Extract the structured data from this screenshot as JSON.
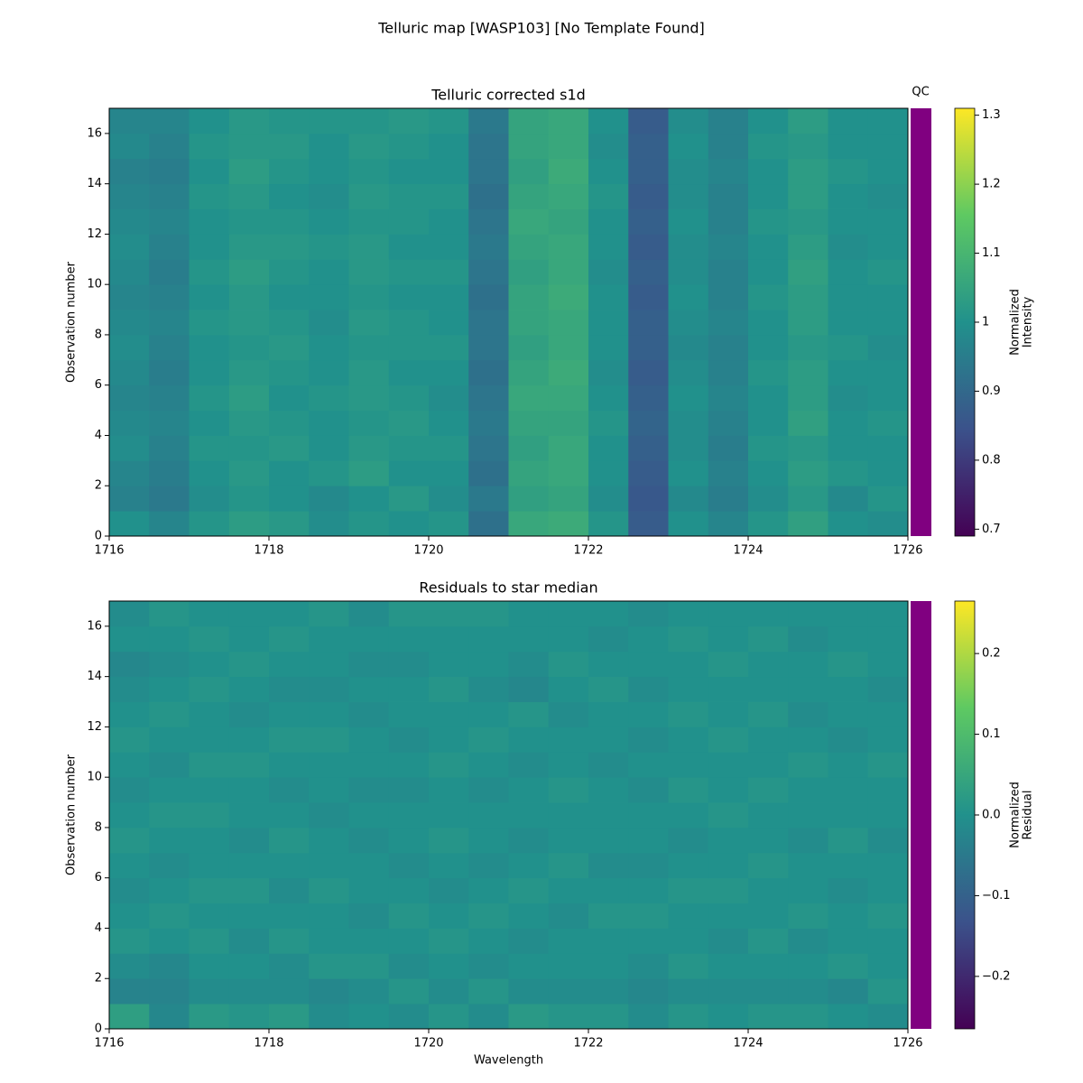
{
  "title": "Telluric map [WASP103] [No Template Found]",
  "chart_data": [
    {
      "type": "heatmap",
      "title": "Telluric corrected s1d",
      "ylabel": "Observation number",
      "colormap": "viridis",
      "qc_label": "QC",
      "qc_color": "#800080",
      "colorbar_label": [
        "Normalized",
        "Intensity"
      ],
      "clim": [
        0.69,
        1.31
      ],
      "cticks": [
        0.7,
        0.8,
        0.9,
        1.0,
        1.1,
        1.2,
        1.3
      ],
      "xlim": [
        1716,
        1726
      ],
      "ylim": [
        0,
        17
      ],
      "xticks": [
        1716,
        1718,
        1720,
        1722,
        1724,
        1726
      ],
      "yticks": [
        0,
        2,
        4,
        6,
        8,
        10,
        12,
        14,
        16
      ],
      "x_edges": [
        1716,
        1716.5,
        1717,
        1717.5,
        1718,
        1718.5,
        1719,
        1719.5,
        1720,
        1720.5,
        1721,
        1721.5,
        1722,
        1722.5,
        1723,
        1723.5,
        1724,
        1724.5,
        1725,
        1725.5,
        1726
      ],
      "y_edges": [
        0,
        1,
        2,
        3,
        4,
        5,
        6,
        7,
        8,
        9,
        10,
        11,
        12,
        13,
        14,
        15,
        16,
        17
      ],
      "values": [
        [
          1.0,
          0.97,
          1.01,
          1.03,
          1.02,
          0.99,
          1.01,
          1.0,
          1.01,
          0.92,
          1.06,
          1.07,
          1.01,
          0.87,
          1.0,
          0.97,
          1.01,
          1.04,
          1.0,
          0.99
        ],
        [
          0.96,
          0.94,
          0.99,
          1.01,
          1.0,
          0.98,
          1.0,
          1.02,
          0.99,
          0.94,
          1.04,
          1.05,
          0.99,
          0.86,
          0.98,
          0.95,
          0.99,
          1.02,
          0.98,
          1.01
        ],
        [
          0.97,
          0.95,
          1.0,
          1.02,
          1.0,
          1.01,
          1.03,
          1.0,
          1.0,
          0.92,
          1.05,
          1.06,
          1.0,
          0.87,
          1.0,
          0.96,
          1.0,
          1.03,
          1.01,
          1.0
        ],
        [
          0.99,
          0.96,
          1.01,
          1.01,
          1.02,
          1.0,
          1.02,
          1.01,
          1.01,
          0.93,
          1.04,
          1.06,
          1.0,
          0.88,
          0.99,
          0.95,
          1.01,
          1.02,
          1.0,
          1.0
        ],
        [
          0.98,
          0.97,
          1.0,
          1.02,
          1.01,
          1.0,
          1.01,
          1.02,
          1.0,
          0.94,
          1.05,
          1.05,
          1.01,
          0.89,
          0.99,
          0.96,
          1.0,
          1.04,
          1.0,
          1.01
        ],
        [
          0.97,
          0.96,
          1.01,
          1.03,
          1.0,
          1.01,
          1.02,
          1.01,
          0.99,
          0.93,
          1.06,
          1.06,
          1.0,
          0.88,
          1.0,
          0.97,
          1.0,
          1.03,
          0.99,
          1.0
        ],
        [
          0.98,
          0.95,
          1.0,
          1.02,
          1.01,
          1.0,
          1.02,
          1.0,
          1.0,
          0.92,
          1.05,
          1.07,
          0.99,
          0.87,
          0.99,
          0.96,
          1.01,
          1.03,
          1.0,
          1.0
        ],
        [
          0.99,
          0.96,
          1.0,
          1.01,
          1.02,
          1.0,
          1.01,
          1.01,
          1.01,
          0.93,
          1.04,
          1.06,
          1.0,
          0.88,
          0.98,
          0.96,
          1.0,
          1.02,
          1.01,
          0.99
        ],
        [
          0.98,
          0.97,
          1.01,
          1.02,
          1.01,
          0.99,
          1.02,
          1.01,
          1.0,
          0.93,
          1.05,
          1.06,
          1.0,
          0.88,
          0.99,
          0.97,
          1.0,
          1.03,
          1.0,
          1.0
        ],
        [
          0.97,
          0.96,
          1.0,
          1.02,
          1.0,
          1.0,
          1.01,
          1.0,
          1.0,
          0.92,
          1.05,
          1.07,
          1.0,
          0.87,
          1.0,
          0.96,
          1.01,
          1.03,
          1.0,
          1.0
        ],
        [
          0.98,
          0.95,
          1.01,
          1.03,
          1.01,
          1.0,
          1.02,
          1.01,
          1.01,
          0.93,
          1.04,
          1.06,
          0.99,
          0.88,
          0.99,
          0.96,
          1.0,
          1.04,
          1.0,
          1.01
        ],
        [
          0.99,
          0.96,
          1.0,
          1.02,
          1.02,
          1.01,
          1.02,
          1.0,
          1.0,
          0.94,
          1.05,
          1.06,
          1.0,
          0.87,
          0.99,
          0.97,
          1.0,
          1.03,
          0.99,
          1.0
        ],
        [
          0.98,
          0.97,
          1.0,
          1.01,
          1.01,
          1.0,
          1.01,
          1.01,
          1.0,
          0.93,
          1.06,
          1.05,
          1.0,
          0.88,
          1.0,
          0.96,
          1.01,
          1.02,
          1.0,
          1.0
        ],
        [
          0.97,
          0.96,
          1.01,
          1.02,
          1.0,
          0.99,
          1.02,
          1.01,
          1.01,
          0.92,
          1.05,
          1.06,
          1.01,
          0.87,
          0.99,
          0.96,
          1.0,
          1.03,
          1.0,
          0.99
        ],
        [
          0.96,
          0.95,
          1.0,
          1.03,
          1.01,
          1.0,
          1.01,
          1.0,
          1.0,
          0.93,
          1.04,
          1.07,
          1.0,
          0.88,
          0.99,
          0.97,
          1.0,
          1.03,
          1.01,
          1.0
        ],
        [
          0.98,
          0.96,
          1.01,
          1.02,
          1.02,
          1.0,
          1.02,
          1.01,
          1.0,
          0.93,
          1.05,
          1.06,
          0.99,
          0.88,
          1.0,
          0.96,
          1.01,
          1.02,
          1.0,
          1.0
        ],
        [
          0.97,
          0.97,
          1.0,
          1.02,
          1.01,
          1.01,
          1.01,
          1.02,
          1.01,
          0.94,
          1.05,
          1.06,
          1.0,
          0.87,
          0.99,
          0.96,
          1.0,
          1.03,
          1.0,
          1.0
        ]
      ]
    },
    {
      "type": "heatmap",
      "title": "Residuals to star median",
      "xlabel": "Wavelength",
      "ylabel": "Observation number",
      "colormap": "viridis",
      "qc_color": "#800080",
      "colorbar_label": [
        "Normalized",
        "Residual"
      ],
      "clim": [
        -0.265,
        0.265
      ],
      "cticks": [
        {
          "value": -0.2,
          "label": "−0.2"
        },
        {
          "value": -0.1,
          "label": "−0.1"
        },
        {
          "value": 0,
          "label": "0.0"
        },
        0.1,
        0.2
      ],
      "xlim": [
        1716,
        1726
      ],
      "ylim": [
        0,
        17
      ],
      "xticks": [
        1716,
        1718,
        1720,
        1722,
        1724,
        1726
      ],
      "yticks": [
        0,
        2,
        4,
        6,
        8,
        10,
        12,
        14,
        16
      ],
      "x_edges": [
        1716,
        1716.5,
        1717,
        1717.5,
        1718,
        1718.5,
        1719,
        1719.5,
        1720,
        1720.5,
        1721,
        1721.5,
        1722,
        1722.5,
        1723,
        1723.5,
        1724,
        1724.5,
        1725,
        1725.5,
        1726
      ],
      "y_edges": [
        0,
        1,
        2,
        3,
        4,
        5,
        6,
        7,
        8,
        9,
        10,
        11,
        12,
        13,
        14,
        15,
        16,
        17
      ],
      "values": [
        [
          0.03,
          -0.02,
          0.02,
          0.01,
          0.02,
          -0.01,
          0.0,
          -0.01,
          0.01,
          -0.01,
          0.02,
          0.01,
          0.01,
          -0.01,
          0.01,
          0.0,
          0.01,
          0.01,
          0.0,
          -0.01
        ],
        [
          -0.03,
          -0.03,
          -0.01,
          -0.01,
          -0.01,
          -0.02,
          -0.01,
          0.01,
          -0.01,
          0.01,
          -0.01,
          -0.01,
          -0.01,
          -0.02,
          -0.01,
          -0.01,
          -0.01,
          -0.01,
          -0.02,
          0.01
        ],
        [
          -0.01,
          -0.02,
          0.0,
          0.0,
          -0.01,
          0.01,
          0.01,
          -0.01,
          0.0,
          -0.01,
          0.0,
          0.0,
          0.0,
          -0.01,
          0.01,
          0.0,
          0.0,
          0.0,
          0.01,
          0.0
        ],
        [
          0.01,
          0.0,
          0.01,
          -0.01,
          0.01,
          0.0,
          0.0,
          0.0,
          0.01,
          0.0,
          -0.01,
          0.0,
          0.0,
          0.0,
          0.0,
          -0.01,
          0.01,
          -0.01,
          0.0,
          0.0
        ],
        [
          0.0,
          0.01,
          0.0,
          0.0,
          0.0,
          0.0,
          -0.01,
          0.01,
          0.0,
          0.01,
          0.0,
          -0.01,
          0.01,
          0.01,
          0.0,
          0.0,
          0.0,
          0.01,
          0.0,
          0.01
        ],
        [
          -0.01,
          0.0,
          0.01,
          0.01,
          -0.01,
          0.01,
          0.0,
          0.0,
          -0.01,
          0.0,
          0.01,
          0.0,
          0.0,
          0.0,
          0.01,
          0.01,
          0.0,
          0.0,
          -0.01,
          0.0
        ],
        [
          0.0,
          -0.01,
          0.0,
          0.0,
          0.0,
          0.0,
          0.0,
          -0.01,
          0.0,
          -0.01,
          0.0,
          0.01,
          -0.01,
          -0.01,
          0.0,
          0.0,
          0.01,
          0.0,
          0.0,
          0.0
        ],
        [
          0.01,
          0.0,
          0.0,
          -0.01,
          0.01,
          0.0,
          -0.01,
          0.0,
          0.01,
          0.0,
          -0.01,
          0.0,
          0.0,
          0.0,
          -0.01,
          0.0,
          0.0,
          -0.01,
          0.01,
          -0.01
        ],
        [
          0.0,
          0.01,
          0.01,
          0.0,
          0.0,
          -0.01,
          0.0,
          0.0,
          0.0,
          0.0,
          0.0,
          0.0,
          0.0,
          0.0,
          0.0,
          0.01,
          0.0,
          0.0,
          0.0,
          0.0
        ],
        [
          -0.01,
          0.0,
          0.0,
          0.0,
          -0.01,
          0.0,
          -0.01,
          -0.01,
          0.0,
          -0.01,
          0.0,
          0.01,
          0.0,
          -0.01,
          0.01,
          0.0,
          0.01,
          0.0,
          0.0,
          0.0
        ],
        [
          0.0,
          -0.01,
          0.01,
          0.01,
          0.0,
          0.0,
          0.0,
          0.0,
          0.01,
          0.0,
          -0.01,
          0.0,
          -0.01,
          0.0,
          0.0,
          0.0,
          0.0,
          0.01,
          0.0,
          0.01
        ],
        [
          0.01,
          0.0,
          0.0,
          0.0,
          0.01,
          0.01,
          0.0,
          -0.01,
          0.0,
          0.01,
          0.0,
          0.0,
          0.0,
          -0.01,
          0.0,
          0.01,
          0.0,
          0.0,
          -0.01,
          0.0
        ],
        [
          0.0,
          0.01,
          0.0,
          -0.01,
          0.0,
          0.0,
          -0.01,
          0.0,
          0.0,
          0.0,
          0.01,
          -0.01,
          0.0,
          0.0,
          0.01,
          0.0,
          0.01,
          -0.01,
          0.0,
          0.0
        ],
        [
          -0.01,
          0.0,
          0.01,
          0.0,
          -0.01,
          -0.01,
          0.0,
          0.0,
          0.01,
          -0.01,
          -0.02,
          0.0,
          0.01,
          -0.01,
          0.0,
          0.0,
          0.0,
          0.0,
          0.0,
          -0.01
        ],
        [
          -0.02,
          -0.01,
          0.0,
          0.01,
          0.0,
          0.0,
          -0.01,
          -0.01,
          0.0,
          0.0,
          -0.01,
          0.01,
          0.0,
          0.0,
          0.0,
          0.01,
          0.0,
          0.0,
          0.01,
          0.0
        ],
        [
          0.0,
          0.0,
          0.01,
          0.0,
          0.01,
          0.0,
          0.0,
          0.0,
          0.0,
          0.0,
          0.0,
          0.0,
          -0.01,
          0.0,
          0.01,
          0.0,
          0.01,
          -0.01,
          0.0,
          0.0
        ],
        [
          -0.01,
          0.01,
          0.0,
          0.0,
          0.0,
          0.01,
          -0.01,
          0.01,
          0.01,
          0.01,
          0.0,
          0.0,
          0.0,
          -0.01,
          0.0,
          0.0,
          0.0,
          0.0,
          0.0,
          0.0
        ]
      ]
    }
  ]
}
